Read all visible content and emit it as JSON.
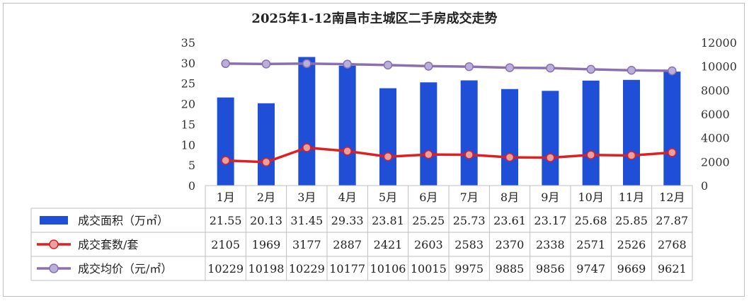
{
  "chart_data": {
    "type": "bar",
    "title": "2025年1-12南昌市主城区二手房成交走势",
    "categories": [
      "1月",
      "2月",
      "3月",
      "4月",
      "5月",
      "6月",
      "7月",
      "8月",
      "9月",
      "10月",
      "11月",
      "12月"
    ],
    "y_left": {
      "ylim": [
        0,
        35
      ],
      "ticks": [
        0,
        5,
        10,
        15,
        20,
        25,
        30,
        35
      ]
    },
    "y_right": {
      "ylim": [
        0,
        12000
      ],
      "ticks": [
        0,
        2000,
        4000,
        6000,
        8000,
        10000,
        12000
      ]
    },
    "grid": false,
    "legend": "data-table-left",
    "series": [
      {
        "name": "成交面积（万㎡）",
        "type": "bar",
        "axis": "left",
        "color": "#1f4fd6",
        "values": [
          21.55,
          20.13,
          31.45,
          29.33,
          23.81,
          25.25,
          25.73,
          23.61,
          23.17,
          25.68,
          25.85,
          27.87
        ]
      },
      {
        "name": "成交套数/套",
        "type": "line",
        "axis": "right",
        "color": "#e02020",
        "marker_color": "#e8a0a0",
        "values": [
          2105,
          1969,
          3177,
          2887,
          2421,
          2603,
          2583,
          2370,
          2338,
          2571,
          2526,
          2768
        ]
      },
      {
        "name": "成交均价（元/㎡）",
        "type": "line",
        "axis": "right",
        "color": "#8a70b0",
        "marker_color": "#b8b0d8",
        "values": [
          10229,
          10198,
          10229,
          10177,
          10106,
          10015,
          9975,
          9885,
          9856,
          9747,
          9669,
          9621
        ]
      }
    ]
  }
}
